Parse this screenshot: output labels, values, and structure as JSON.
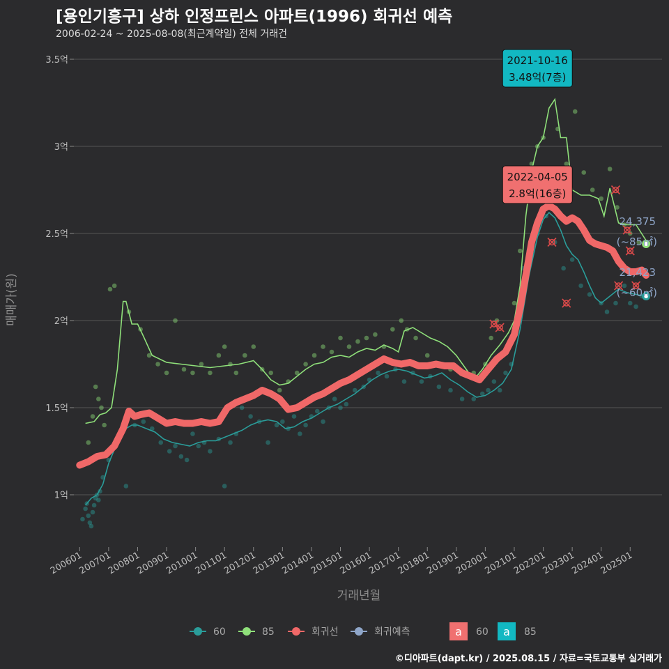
{
  "header": {
    "title": "[용인기흥구] 상하 인정프린스 아파트(1996) 회귀선 예측",
    "subtitle": "2006-02-24 ~ 2025-08-08(최근계약일) 전체 거래건"
  },
  "caption": "©디아파트(dapt.kr) / 2025.08.15 / 자료=국토교통부 실거래가",
  "colors": {
    "background": "#2b2b2d",
    "grid": "#555555",
    "s60": "#2a9d9a",
    "s85": "#8fe07a",
    "reg": "#f06868",
    "pred": "#8fa6c9",
    "box60": "#f07070",
    "box85": "#12b8c2"
  },
  "chart_data": {
    "type": "line",
    "title": "[용인기흥구] 상하 인정프린스 아파트(1996) 회귀선 예측",
    "xlabel": "거래년월",
    "ylabel": "매매가(원)",
    "ylim": [
      0.7,
      3.6
    ],
    "xlim": [
      2005.8,
      2026.1
    ],
    "grid": true,
    "legend_position": "bottom",
    "y_ticks": [
      {
        "value": 1.0,
        "label": "1억"
      },
      {
        "value": 1.5,
        "label": "1.5억"
      },
      {
        "value": 2.0,
        "label": "2억"
      },
      {
        "value": 2.5,
        "label": "2.5억"
      },
      {
        "value": 3.0,
        "label": "3억"
      },
      {
        "value": 3.5,
        "label": "3.5억"
      }
    ],
    "x_ticks": [
      {
        "value": 2006,
        "label": "200601"
      },
      {
        "value": 2007,
        "label": "200701"
      },
      {
        "value": 2008,
        "label": "200801"
      },
      {
        "value": 2009,
        "label": "200901"
      },
      {
        "value": 2010,
        "label": "201001"
      },
      {
        "value": 2011,
        "label": "201101"
      },
      {
        "value": 2012,
        "label": "201201"
      },
      {
        "value": 2013,
        "label": "201301"
      },
      {
        "value": 2014,
        "label": "201401"
      },
      {
        "value": 2015,
        "label": "201501"
      },
      {
        "value": 2016,
        "label": "201601"
      },
      {
        "value": 2017,
        "label": "201701"
      },
      {
        "value": 2018,
        "label": "201801"
      },
      {
        "value": 2019,
        "label": "201901"
      },
      {
        "value": 2020,
        "label": "202001"
      },
      {
        "value": 2021,
        "label": "202101"
      },
      {
        "value": 2022,
        "label": "202201"
      },
      {
        "value": 2023,
        "label": "202301"
      },
      {
        "value": 2024,
        "label": "202401"
      },
      {
        "value": 2025,
        "label": "202501"
      }
    ],
    "series": [
      {
        "name": "60",
        "color": "#2a9d9a",
        "x": [
          2006.2,
          2006.4,
          2006.6,
          2006.8,
          2007.0,
          2007.2,
          2007.4,
          2007.6,
          2007.8,
          2008.0,
          2008.3,
          2008.6,
          2008.9,
          2009.2,
          2009.5,
          2009.8,
          2010.1,
          2010.4,
          2010.7,
          2011.0,
          2011.3,
          2011.6,
          2011.9,
          2012.2,
          2012.5,
          2012.8,
          2013.1,
          2013.4,
          2013.7,
          2014.0,
          2014.3,
          2014.6,
          2014.9,
          2015.2,
          2015.5,
          2015.8,
          2016.1,
          2016.4,
          2016.7,
          2017.0,
          2017.3,
          2017.6,
          2017.9,
          2018.2,
          2018.5,
          2018.8,
          2019.1,
          2019.4,
          2019.7,
          2020.0,
          2020.3,
          2020.6,
          2020.9,
          2021.2,
          2021.5,
          2021.8,
          2022.0,
          2022.2,
          2022.4,
          2022.6,
          2022.8,
          2023.0,
          2023.2,
          2023.4,
          2023.6,
          2023.8,
          2024.0,
          2024.3,
          2024.6,
          2024.9,
          2025.2,
          2025.5
        ],
        "y": [
          0.94,
          0.98,
          1.0,
          1.06,
          1.18,
          1.26,
          1.34,
          1.38,
          1.4,
          1.4,
          1.38,
          1.36,
          1.32,
          1.3,
          1.29,
          1.28,
          1.3,
          1.31,
          1.31,
          1.33,
          1.35,
          1.37,
          1.4,
          1.42,
          1.43,
          1.42,
          1.38,
          1.39,
          1.42,
          1.44,
          1.47,
          1.5,
          1.52,
          1.55,
          1.58,
          1.62,
          1.66,
          1.69,
          1.71,
          1.72,
          1.71,
          1.69,
          1.67,
          1.68,
          1.7,
          1.66,
          1.63,
          1.59,
          1.56,
          1.57,
          1.6,
          1.64,
          1.72,
          1.95,
          2.25,
          2.48,
          2.58,
          2.62,
          2.59,
          2.52,
          2.43,
          2.38,
          2.35,
          2.28,
          2.2,
          2.13,
          2.1,
          2.14,
          2.18,
          2.16,
          2.15,
          2.14
        ]
      },
      {
        "name": "85",
        "color": "#8fe07a",
        "x": [
          2006.2,
          2006.5,
          2006.7,
          2006.9,
          2007.1,
          2007.3,
          2007.5,
          2007.6,
          2007.8,
          2008.0,
          2008.2,
          2008.5,
          2009.0,
          2009.5,
          2010.0,
          2010.5,
          2011.0,
          2011.5,
          2012.0,
          2012.3,
          2012.6,
          2012.9,
          2013.2,
          2013.5,
          2013.8,
          2014.1,
          2014.4,
          2014.7,
          2015.0,
          2015.3,
          2015.6,
          2015.9,
          2016.2,
          2016.5,
          2016.8,
          2017.0,
          2017.2,
          2017.5,
          2017.8,
          2018.1,
          2018.4,
          2018.7,
          2019.0,
          2019.3,
          2019.6,
          2019.9,
          2020.2,
          2020.5,
          2020.8,
          2021.0,
          2021.2,
          2021.4,
          2021.6,
          2021.8,
          2022.0,
          2022.2,
          2022.4,
          2022.6,
          2022.8,
          2023.0,
          2023.3,
          2023.6,
          2023.9,
          2024.1,
          2024.3,
          2024.6,
          2024.9,
          2025.2,
          2025.55
        ],
        "y": [
          1.41,
          1.42,
          1.46,
          1.47,
          1.5,
          1.72,
          2.11,
          2.11,
          1.98,
          1.98,
          1.91,
          1.8,
          1.76,
          1.75,
          1.74,
          1.73,
          1.74,
          1.75,
          1.77,
          1.72,
          1.66,
          1.63,
          1.64,
          1.68,
          1.72,
          1.75,
          1.76,
          1.79,
          1.8,
          1.79,
          1.82,
          1.84,
          1.83,
          1.86,
          1.84,
          1.82,
          1.94,
          1.96,
          1.93,
          1.9,
          1.88,
          1.85,
          1.8,
          1.73,
          1.66,
          1.72,
          1.8,
          1.86,
          1.93,
          2.0,
          2.2,
          2.6,
          2.86,
          3.0,
          3.05,
          3.22,
          3.27,
          3.05,
          3.05,
          2.75,
          2.72,
          2.72,
          2.7,
          2.6,
          2.76,
          2.56,
          2.55,
          2.55,
          2.46
        ]
      },
      {
        "name": "회귀선",
        "color": "#f06868",
        "x": [
          2006.0,
          2006.3,
          2006.6,
          2006.9,
          2007.2,
          2007.5,
          2007.7,
          2007.9,
          2008.1,
          2008.4,
          2008.7,
          2009.0,
          2009.3,
          2009.6,
          2009.9,
          2010.2,
          2010.5,
          2010.8,
          2011.1,
          2011.4,
          2011.7,
          2012.0,
          2012.3,
          2012.6,
          2012.9,
          2013.2,
          2013.5,
          2013.8,
          2014.1,
          2014.4,
          2014.7,
          2015.0,
          2015.3,
          2015.6,
          2015.9,
          2016.2,
          2016.5,
          2016.8,
          2017.1,
          2017.4,
          2017.7,
          2018.0,
          2018.3,
          2018.6,
          2018.9,
          2019.2,
          2019.5,
          2019.8,
          2020.1,
          2020.4,
          2020.7,
          2021.0,
          2021.2,
          2021.4,
          2021.6,
          2021.8,
          2022.0,
          2022.2,
          2022.4,
          2022.6,
          2022.8,
          2023.0,
          2023.2,
          2023.4,
          2023.6,
          2023.8,
          2024.0,
          2024.2,
          2024.4,
          2024.6,
          2024.8,
          2025.0,
          2025.2,
          2025.4,
          2025.55
        ],
        "y": [
          1.17,
          1.19,
          1.22,
          1.23,
          1.28,
          1.38,
          1.48,
          1.45,
          1.46,
          1.47,
          1.44,
          1.41,
          1.42,
          1.41,
          1.41,
          1.42,
          1.41,
          1.42,
          1.5,
          1.53,
          1.55,
          1.57,
          1.6,
          1.58,
          1.55,
          1.49,
          1.5,
          1.53,
          1.56,
          1.58,
          1.61,
          1.64,
          1.66,
          1.69,
          1.72,
          1.75,
          1.78,
          1.76,
          1.75,
          1.76,
          1.74,
          1.74,
          1.75,
          1.74,
          1.74,
          1.7,
          1.68,
          1.66,
          1.72,
          1.78,
          1.82,
          1.92,
          2.07,
          2.26,
          2.45,
          2.56,
          2.64,
          2.66,
          2.64,
          2.6,
          2.57,
          2.59,
          2.57,
          2.52,
          2.46,
          2.44,
          2.43,
          2.42,
          2.4,
          2.34,
          2.3,
          2.28,
          2.28,
          2.29,
          2.26
        ]
      },
      {
        "name": "회귀예측",
        "color": "#8fa6c9",
        "x": [
          2025.55
        ],
        "y": [
          2.44
        ]
      }
    ],
    "scatter_60": {
      "color": "#2a9d9a",
      "x": [
        2006.1,
        2006.2,
        2006.25,
        2006.3,
        2006.35,
        2006.4,
        2006.45,
        2006.5,
        2006.55,
        2006.6,
        2006.65,
        2006.7,
        2006.8,
        2007.0,
        2007.3,
        2007.6,
        2007.9,
        2008.2,
        2008.5,
        2008.8,
        2009.1,
        2009.3,
        2009.5,
        2009.7,
        2009.9,
        2010.1,
        2010.3,
        2010.5,
        2010.8,
        2011.0,
        2011.2,
        2011.4,
        2011.6,
        2011.9,
        2012.2,
        2012.5,
        2012.8,
        2013.0,
        2013.2,
        2013.4,
        2013.6,
        2013.8,
        2014.0,
        2014.2,
        2014.4,
        2014.6,
        2014.8,
        2015.0,
        2015.2,
        2015.5,
        2015.8,
        2016.0,
        2016.3,
        2016.6,
        2016.9,
        2017.2,
        2017.5,
        2017.8,
        2018.1,
        2018.4,
        2018.8,
        2019.2,
        2019.6,
        2019.9,
        2020.1,
        2020.3,
        2020.5,
        2020.7,
        2020.9,
        2021.1,
        2021.3,
        2021.5,
        2021.8,
        2022.1,
        2022.4,
        2022.7,
        2023.0,
        2023.3,
        2023.6,
        2024.0,
        2024.2,
        2024.5,
        2024.8,
        2025.0,
        2025.2,
        2025.4
      ],
      "y": [
        0.86,
        0.92,
        0.95,
        0.88,
        0.84,
        0.82,
        0.9,
        0.94,
        0.98,
        1.0,
        0.97,
        1.02,
        1.1,
        1.2,
        1.3,
        1.05,
        1.4,
        1.42,
        1.38,
        1.3,
        1.25,
        1.28,
        1.22,
        1.2,
        1.35,
        1.28,
        1.3,
        1.25,
        1.32,
        1.05,
        1.3,
        1.35,
        1.5,
        1.45,
        1.42,
        1.3,
        1.4,
        1.42,
        1.38,
        1.45,
        1.35,
        1.4,
        1.45,
        1.48,
        1.42,
        1.5,
        1.55,
        1.5,
        1.52,
        1.6,
        1.62,
        1.66,
        1.7,
        1.68,
        1.72,
        1.65,
        1.7,
        1.65,
        1.68,
        1.62,
        1.6,
        1.55,
        1.55,
        1.58,
        1.6,
        1.65,
        1.6,
        1.7,
        1.75,
        2.0,
        2.3,
        2.4,
        2.5,
        2.6,
        2.45,
        2.3,
        2.35,
        2.2,
        2.15,
        2.1,
        2.05,
        2.1,
        2.2,
        2.1,
        2.08,
        2.14
      ]
    },
    "scatter_85": {
      "color": "#8fe07a",
      "x": [
        2006.3,
        2006.45,
        2006.55,
        2006.65,
        2006.75,
        2006.85,
        2007.05,
        2007.2,
        2007.7,
        2008.1,
        2008.4,
        2008.7,
        2009.0,
        2009.3,
        2009.6,
        2009.9,
        2010.2,
        2010.5,
        2010.8,
        2011.0,
        2011.2,
        2011.4,
        2011.7,
        2012.0,
        2012.3,
        2012.6,
        2012.9,
        2013.2,
        2013.5,
        2013.8,
        2014.1,
        2014.4,
        2014.7,
        2015.0,
        2015.3,
        2015.6,
        2015.9,
        2016.2,
        2016.5,
        2016.8,
        2017.1,
        2017.3,
        2017.6,
        2018.0,
        2018.4,
        2018.8,
        2019.2,
        2019.6,
        2020.0,
        2020.2,
        2020.4,
        2020.6,
        2020.8,
        2021.0,
        2021.2,
        2021.4,
        2021.6,
        2021.8,
        2022.0,
        2022.3,
        2022.5,
        2022.8,
        2023.1,
        2023.4,
        2023.7,
        2024.0,
        2024.3,
        2024.55,
        2024.8,
        2025.0,
        2025.3
      ],
      "y": [
        1.3,
        1.45,
        1.62,
        1.55,
        1.5,
        1.4,
        2.18,
        2.2,
        2.05,
        1.95,
        1.8,
        1.75,
        1.7,
        2.0,
        1.72,
        1.7,
        1.75,
        1.7,
        1.8,
        1.85,
        1.75,
        1.7,
        1.8,
        1.85,
        1.72,
        1.7,
        1.6,
        1.65,
        1.7,
        1.75,
        1.8,
        1.85,
        1.82,
        1.9,
        1.85,
        1.88,
        1.9,
        1.92,
        1.85,
        1.95,
        2.0,
        1.95,
        1.9,
        1.8,
        1.75,
        1.72,
        1.7,
        1.7,
        1.75,
        1.9,
        2.0,
        1.8,
        1.85,
        2.1,
        2.4,
        2.7,
        2.9,
        3.0,
        3.05,
        3.48,
        3.1,
        2.9,
        3.2,
        2.85,
        2.75,
        2.7,
        2.87,
        2.65,
        2.55,
        2.5,
        2.45
      ]
    },
    "outliers": {
      "color": "#d94a4a",
      "x": [
        2020.3,
        2020.5,
        2022.3,
        2022.8,
        2024.5,
        2024.6,
        2024.9,
        2025.0,
        2025.2
      ],
      "y": [
        1.98,
        1.96,
        2.45,
        2.1,
        2.75,
        2.2,
        2.52,
        2.4,
        2.2
      ]
    },
    "latest_points": [
      {
        "x": 2025.55,
        "y": 2.44,
        "color": "#8fe07a"
      },
      {
        "x": 2025.55,
        "y": 2.14,
        "color": "#2a9d9a"
      }
    ],
    "annotations": [
      {
        "date": "2021-10-16",
        "text": "3.48억(7층)",
        "x": 2021.8,
        "y": 3.48,
        "box_color": "#12b8c2"
      },
      {
        "date": "2022-04-05",
        "text": "2.8억(16층)",
        "x": 2021.8,
        "y": 2.8,
        "box_color": "#f07070"
      }
    ],
    "side_labels": [
      {
        "value": "24,375",
        "unit": "(~85㎡)",
        "y": 2.44
      },
      {
        "value": "21,423",
        "unit": "(~60㎡)",
        "y": 2.14
      }
    ],
    "legend": {
      "items": [
        {
          "label": "60",
          "color": "#2a9d9a"
        },
        {
          "label": "85",
          "color": "#8fe07a"
        },
        {
          "label": "회귀선",
          "color": "#f06868"
        },
        {
          "label": "회귀예측",
          "color": "#8fa6c9"
        }
      ],
      "boxes": [
        {
          "glyph": "a",
          "label": "60",
          "color": "#f07070"
        },
        {
          "glyph": "a",
          "label": "85",
          "color": "#12b8c2"
        }
      ]
    }
  }
}
